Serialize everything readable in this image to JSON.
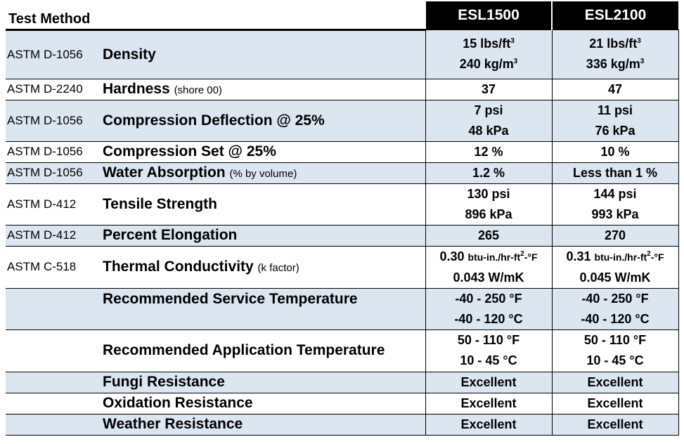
{
  "header": {
    "test_method": "Test Method",
    "products": [
      "ESL1500",
      "ESL2100"
    ]
  },
  "rows": [
    {
      "method": "ASTM D-1056",
      "property": "Density",
      "note": "",
      "v1": {
        "l1": "15 lbs/ft",
        "l1_sup": "3",
        "l2": "240 kg/m",
        "l2_sup": "3"
      },
      "v2": {
        "l1": "21 lbs/ft",
        "l1_sup": "3",
        "l2": "336 kg/m",
        "l2_sup": "3"
      }
    },
    {
      "method": "ASTM D-2240",
      "property": "Hardness",
      "note": "(shore 00)",
      "v1": {
        "l1": "37"
      },
      "v2": {
        "l1": "47"
      }
    },
    {
      "method": "ASTM D-1056",
      "property": "Compression Deflection @ 25%",
      "note": "",
      "v1": {
        "l1": "7 psi",
        "l2": "48 kPa"
      },
      "v2": {
        "l1": "11 psi",
        "l2": "76 kPa"
      }
    },
    {
      "method": "ASTM D-1056",
      "property": "Compression Set @ 25%",
      "note": "",
      "v1": {
        "l1": "12 %"
      },
      "v2": {
        "l1": "10 %"
      }
    },
    {
      "method": "ASTM D-1056",
      "property": "Water Absorption",
      "note": "(% by volume)",
      "v1": {
        "l1": "1.2 %"
      },
      "v2": {
        "l1": "Less than 1 %"
      }
    },
    {
      "method": "ASTM D-412",
      "property": "Tensile Strength",
      "note": "",
      "v1": {
        "l1": "130 psi",
        "l2": "896 kPa"
      },
      "v2": {
        "l1": "144 psi",
        "l2": "993 kPa"
      }
    },
    {
      "method": "ASTM D-412",
      "property": "Percent Elongation",
      "note": "",
      "v1": {
        "l1": "265"
      },
      "v2": {
        "l1": "270"
      }
    },
    {
      "method": "ASTM C-518",
      "property": "Thermal Conductivity",
      "note": "(k factor)",
      "v1": {
        "l1_num": "0.30",
        "l1_unit_a": "btu-in./hr-ft",
        "l1_sup": "2",
        "l1_unit_b": "-°F",
        "l2": "0.043 W/mK"
      },
      "v2": {
        "l1_num": "0.31",
        "l1_unit_a": "btu-in./hr-ft",
        "l1_sup": "2",
        "l1_unit_b": "-°F",
        "l2": "0.045 W/mK"
      }
    },
    {
      "method": "",
      "property": "Recommended Service Temperature",
      "note": "",
      "v1": {
        "l1": "-40 - 250 °F",
        "l2": "-40 - 120 °C"
      },
      "v2": {
        "l1": "-40 - 250 °F",
        "l2": "-40 - 120 °C"
      }
    },
    {
      "method": "",
      "property": "Recommended Application Temperature",
      "note": "",
      "v1": {
        "l1": "50 - 110 °F",
        "l2": "10 - 45 °C"
      },
      "v2": {
        "l1": "50 - 110 °F",
        "l2": "10 - 45 °C"
      }
    },
    {
      "method": "",
      "property": "Fungi Resistance",
      "note": "",
      "v1": {
        "l1": "Excellent"
      },
      "v2": {
        "l1": "Excellent"
      }
    },
    {
      "method": "",
      "property": "Oxidation Resistance",
      "note": "",
      "v1": {
        "l1": "Excellent"
      },
      "v2": {
        "l1": "Excellent"
      }
    },
    {
      "method": "",
      "property": "Weather Resistance",
      "note": "",
      "v1": {
        "l1": "Excellent"
      },
      "v2": {
        "l1": "Excellent"
      }
    }
  ],
  "colors": {
    "row_tint": "#dce6f1",
    "header_bg": "#000000",
    "header_text": "#ffffff"
  }
}
